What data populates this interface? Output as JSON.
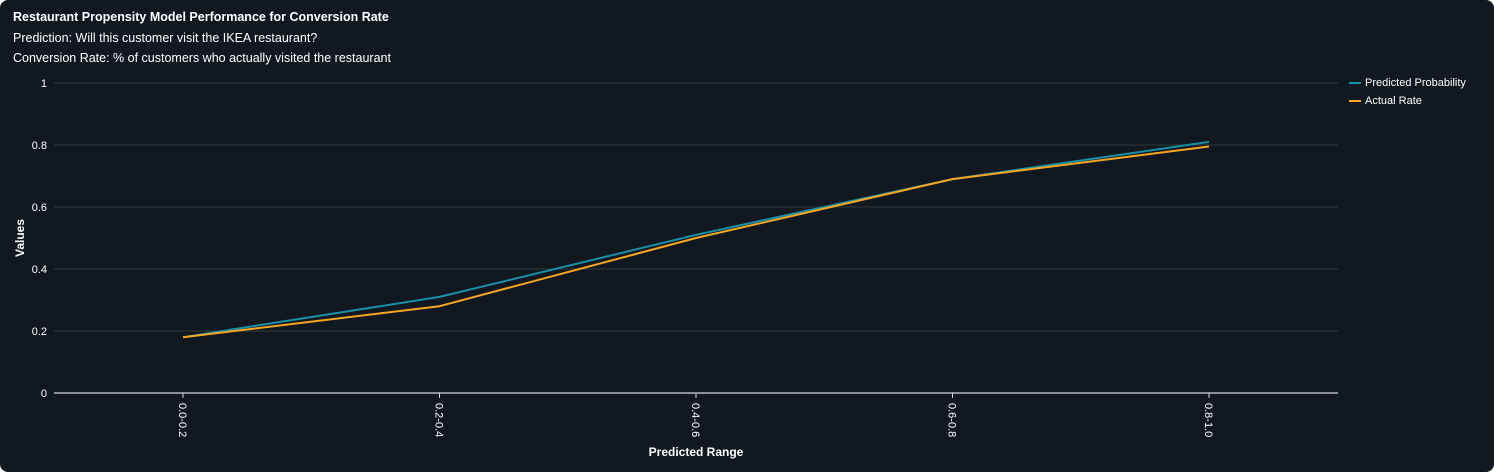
{
  "chart_data": {
    "type": "line",
    "title": "Restaurant Propensity Model Performance for Conversion Rate",
    "subtitles": [
      "Prediction: Will this customer visit the IKEA restaurant?",
      "Conversion Rate: % of customers who actually visited the restaurant"
    ],
    "xlabel": "Predicted Range",
    "ylabel": "Values",
    "categories": [
      "0.0-0.2",
      "0.2-0.4",
      "0.4-0.6",
      "0.6-0.8",
      "0.8-1.0"
    ],
    "series": [
      {
        "name": "Predicted Probability",
        "color": "#1a8fa8",
        "values": [
          0.18,
          0.31,
          0.51,
          0.69,
          0.81
        ]
      },
      {
        "name": "Actual Rate",
        "color": "#f5a623",
        "values": [
          0.18,
          0.28,
          0.5,
          0.69,
          0.795
        ]
      }
    ],
    "ylim": [
      0,
      1
    ],
    "yticks": [
      "0",
      "0.2",
      "0.4",
      "0.6",
      "0.8",
      "1"
    ],
    "grid": true,
    "legend": "top-right"
  }
}
